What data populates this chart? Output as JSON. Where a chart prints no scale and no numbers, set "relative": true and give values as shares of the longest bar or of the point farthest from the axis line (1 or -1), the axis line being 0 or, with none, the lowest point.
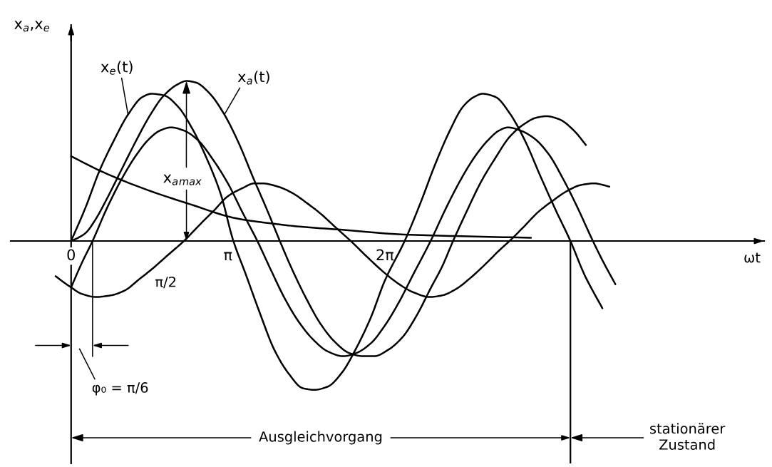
{
  "chart_data": {
    "type": "line",
    "relative": true,
    "xlabel": "ωt",
    "ylabel": "x$_{a}$,x$_{e}$",
    "xlim": [
      -1.21,
      13.88
    ],
    "xticks": [
      0,
      {
        "value": 3.1416,
        "label": "π"
      },
      {
        "value": 6.2832,
        "label": "2π"
      }
    ],
    "series": [
      {
        "name": "x$_{e}$(t)",
        "color": "#000000",
        "x": [
          0,
          0.29,
          0.57,
          0.86,
          1.14,
          1.43,
          1.61,
          1.86,
          2.14,
          2.43,
          2.71,
          3.0,
          3.24,
          3.5,
          3.78,
          4.07,
          4.36,
          4.64,
          4.87,
          5.14,
          5.43,
          5.71,
          6.0,
          6.28,
          6.68,
          7.0,
          7.28,
          7.57,
          7.85,
          8.07,
          8.24,
          8.5,
          8.78,
          9.07,
          9.42,
          9.71,
          10.0,
          10.28,
          10.64
        ],
        "values": [
          0,
          0.21,
          0.44,
          0.63,
          0.79,
          0.9,
          0.92,
          0.91,
          0.84,
          0.7,
          0.52,
          0.29,
          0.01,
          -0.21,
          -0.45,
          -0.68,
          -0.83,
          -0.92,
          -0.93,
          -0.91,
          -0.82,
          -0.67,
          -0.48,
          -0.25,
          0,
          0.24,
          0.47,
          0.68,
          0.84,
          0.9,
          0.92,
          0.9,
          0.8,
          0.64,
          0.39,
          0.19,
          0,
          -0.21,
          -0.42
        ]
      },
      {
        "name": "x$_{a}$(t)",
        "color": "#000000",
        "x": [
          0,
          0.14,
          0.29,
          0.5,
          0.71,
          1.0,
          1.29,
          1.57,
          1.86,
          2.14,
          2.31,
          2.5,
          2.78,
          3.07,
          3.36,
          3.64,
          3.93,
          4.18,
          4.43,
          4.71,
          5.0,
          5.28,
          5.57,
          5.85,
          6.07,
          6.35,
          6.64,
          6.93,
          7.21,
          7.43,
          7.65,
          7.93,
          8.21,
          8.5,
          8.78,
          9.07,
          9.31,
          9.52,
          9.78,
          10.07,
          10.31
        ],
        "values": [
          0,
          0.02,
          0.05,
          0.14,
          0.26,
          0.44,
          0.62,
          0.78,
          0.91,
          0.98,
          1.0,
          0.99,
          0.92,
          0.79,
          0.61,
          0.4,
          0.19,
          0,
          -0.18,
          -0.36,
          -0.52,
          -0.63,
          -0.7,
          -0.72,
          -0.72,
          -0.68,
          -0.6,
          -0.46,
          -0.29,
          -0.16,
          0,
          0.19,
          0.37,
          0.52,
          0.65,
          0.73,
          0.77,
          0.78,
          0.76,
          0.69,
          0.6
        ]
      },
      {
        "color": "#000000",
        "x": [
          0,
          0.21,
          0.43,
          0.71,
          1.0,
          1.29,
          1.57,
          1.78,
          2.0,
          2.26,
          2.54,
          2.86,
          3.14,
          3.43,
          3.73,
          4.0,
          4.28,
          4.57,
          4.86,
          5.14,
          5.45,
          5.71,
          6.0,
          6.28,
          6.57,
          6.85,
          7.2,
          7.5,
          7.78,
          8.07,
          8.35,
          8.57,
          8.75,
          9.0,
          9.28,
          9.57,
          9.85,
          10.14,
          10.42,
          10.64,
          10.9
        ],
        "values": [
          -0.29,
          -0.14,
          0,
          0.2,
          0.38,
          0.53,
          0.64,
          0.69,
          0.71,
          0.69,
          0.63,
          0.5,
          0.36,
          0.18,
          0,
          -0.18,
          -0.36,
          -0.51,
          -0.62,
          -0.69,
          -0.72,
          -0.7,
          -0.64,
          -0.53,
          -0.38,
          -0.21,
          0,
          0.2,
          0.37,
          0.52,
          0.63,
          0.69,
          0.71,
          0.69,
          0.64,
          0.54,
          0.39,
          0.21,
          0.02,
          -0.12,
          -0.27
        ]
      },
      {
        "color": "#000000",
        "x": [
          -0.31,
          -0.14,
          0,
          0.21,
          0.5,
          0.79,
          1.07,
          1.36,
          1.64,
          1.93,
          2.26,
          2.57,
          2.86,
          3.14,
          3.43,
          3.67,
          3.83,
          4.14,
          4.43,
          4.71,
          5.0,
          5.28,
          5.6,
          5.93,
          6.28,
          6.57,
          6.85,
          7.18,
          7.43,
          7.71,
          8.0,
          8.28,
          8.57,
          8.78,
          9.07,
          9.35,
          9.64,
          9.92,
          10.21,
          10.47,
          10.78
        ],
        "values": [
          -0.22,
          -0.26,
          -0.29,
          -0.33,
          -0.35,
          -0.34,
          -0.31,
          -0.24,
          -0.17,
          -0.09,
          0,
          0.1,
          0.19,
          0.28,
          0.33,
          0.36,
          0.36,
          0.34,
          0.3,
          0.24,
          0.17,
          0.09,
          0,
          -0.1,
          -0.2,
          -0.27,
          -0.32,
          -0.35,
          -0.34,
          -0.3,
          -0.23,
          -0.15,
          -0.06,
          0,
          0.09,
          0.18,
          0.25,
          0.31,
          0.35,
          0.36,
          0.34
        ]
      },
      {
        "color": "#000000",
        "x": [
          0,
          0.57,
          1.43,
          2.38,
          3.33,
          4.0,
          4.57,
          5.43,
          6.67,
          7.81,
          9.21
        ],
        "values": [
          0.53,
          0.44,
          0.33,
          0.23,
          0.14,
          0.11,
          0.09,
          0.07,
          0.04,
          0.03,
          0.02
        ]
      }
    ],
    "ref_lines": [
      {
        "axis": "x",
        "value": 0.43,
        "label": "φ₀ = π/6"
      },
      {
        "axis": "x",
        "value": 10.0
      }
    ],
    "annotations": [
      {
        "text": "π/2",
        "x": 1.64,
        "y": -0.17
      },
      {
        "text": "x$_{a}$$_{max}$",
        "x": 2.31,
        "y": 1.0
      },
      "Ausgleichvorgang",
      "stationärer\nZustand"
    ]
  }
}
